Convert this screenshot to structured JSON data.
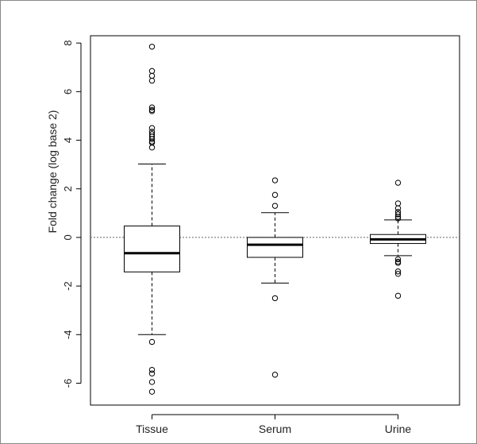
{
  "chart_data": {
    "type": "boxplot",
    "ylabel": "Fold change (log base 2)",
    "xlabel": "",
    "ylim": [
      -6.9,
      8.3
    ],
    "yticks": [
      -6,
      -4,
      -2,
      0,
      2,
      4,
      6,
      8
    ],
    "ytick_labels": [
      "-6",
      "-4",
      "-2",
      "0",
      "2",
      "4",
      "6",
      "8"
    ],
    "reference_line": 0,
    "categories": [
      "Tissue",
      "Serum",
      "Urine"
    ],
    "boxes": [
      {
        "category": "Tissue",
        "whisker_low": -4.0,
        "q1": -1.42,
        "median": -0.65,
        "q3": 0.47,
        "whisker_high": 3.02,
        "outliers": [
          7.85,
          6.85,
          6.65,
          6.45,
          5.35,
          5.25,
          5.2,
          4.5,
          4.35,
          4.25,
          4.15,
          4.05,
          3.95,
          3.9,
          3.7,
          -4.3,
          -5.45,
          -5.6,
          -5.95,
          -6.35
        ]
      },
      {
        "category": "Serum",
        "whisker_low": -1.88,
        "q1": -0.82,
        "median": -0.3,
        "q3": 0.0,
        "whisker_high": 1.02,
        "outliers": [
          2.35,
          1.75,
          1.3,
          -2.5,
          -5.65
        ]
      },
      {
        "category": "Urine",
        "whisker_low": -0.75,
        "q1": -0.25,
        "median": -0.08,
        "q3": 0.12,
        "whisker_high": 0.72,
        "outliers": [
          2.25,
          1.4,
          1.2,
          1.05,
          0.95,
          0.85,
          0.78,
          -0.9,
          -1.0,
          -1.05,
          -1.4,
          -1.5,
          -2.4
        ]
      }
    ],
    "grid": false,
    "colors": {
      "box": "#000000",
      "median": "#000000",
      "reference": "#666666"
    }
  }
}
